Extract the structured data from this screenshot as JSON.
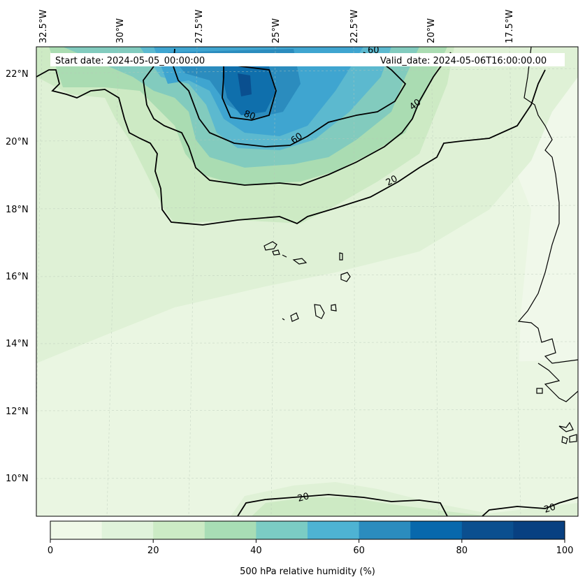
{
  "header": {
    "start_date": "Start date: 2024-05-05_00:00:00",
    "valid_date": "Valid_date: 2024-05-06T16:00:00.00"
  },
  "map": {
    "lon_labels": [
      "32.5°W",
      "30°W",
      "27.5°W",
      "25°W",
      "22.5°W",
      "20°W",
      "17.5°W"
    ],
    "lat_labels": [
      "22°N",
      "20°N",
      "18°N",
      "16°N",
      "14°N",
      "12°N",
      "10°N"
    ],
    "contour_labels": [
      "60",
      "80",
      "60",
      "40",
      "20",
      "20",
      "20"
    ]
  },
  "colorbar": {
    "label": "500 hPa relative humidity (%)",
    "tick_labels": [
      "0",
      "20",
      "40",
      "60",
      "80",
      "100"
    ],
    "colors": [
      "#f0f9e8",
      "#e0f3db",
      "#ccebc5",
      "#a8ddb5",
      "#7bccc4",
      "#4eb3d3",
      "#2b8cbe",
      "#0868ac",
      "#0b4f8f",
      "#084081"
    ]
  },
  "colors": {
    "bg_level": "#eef8e6",
    "accent": "#084081"
  }
}
